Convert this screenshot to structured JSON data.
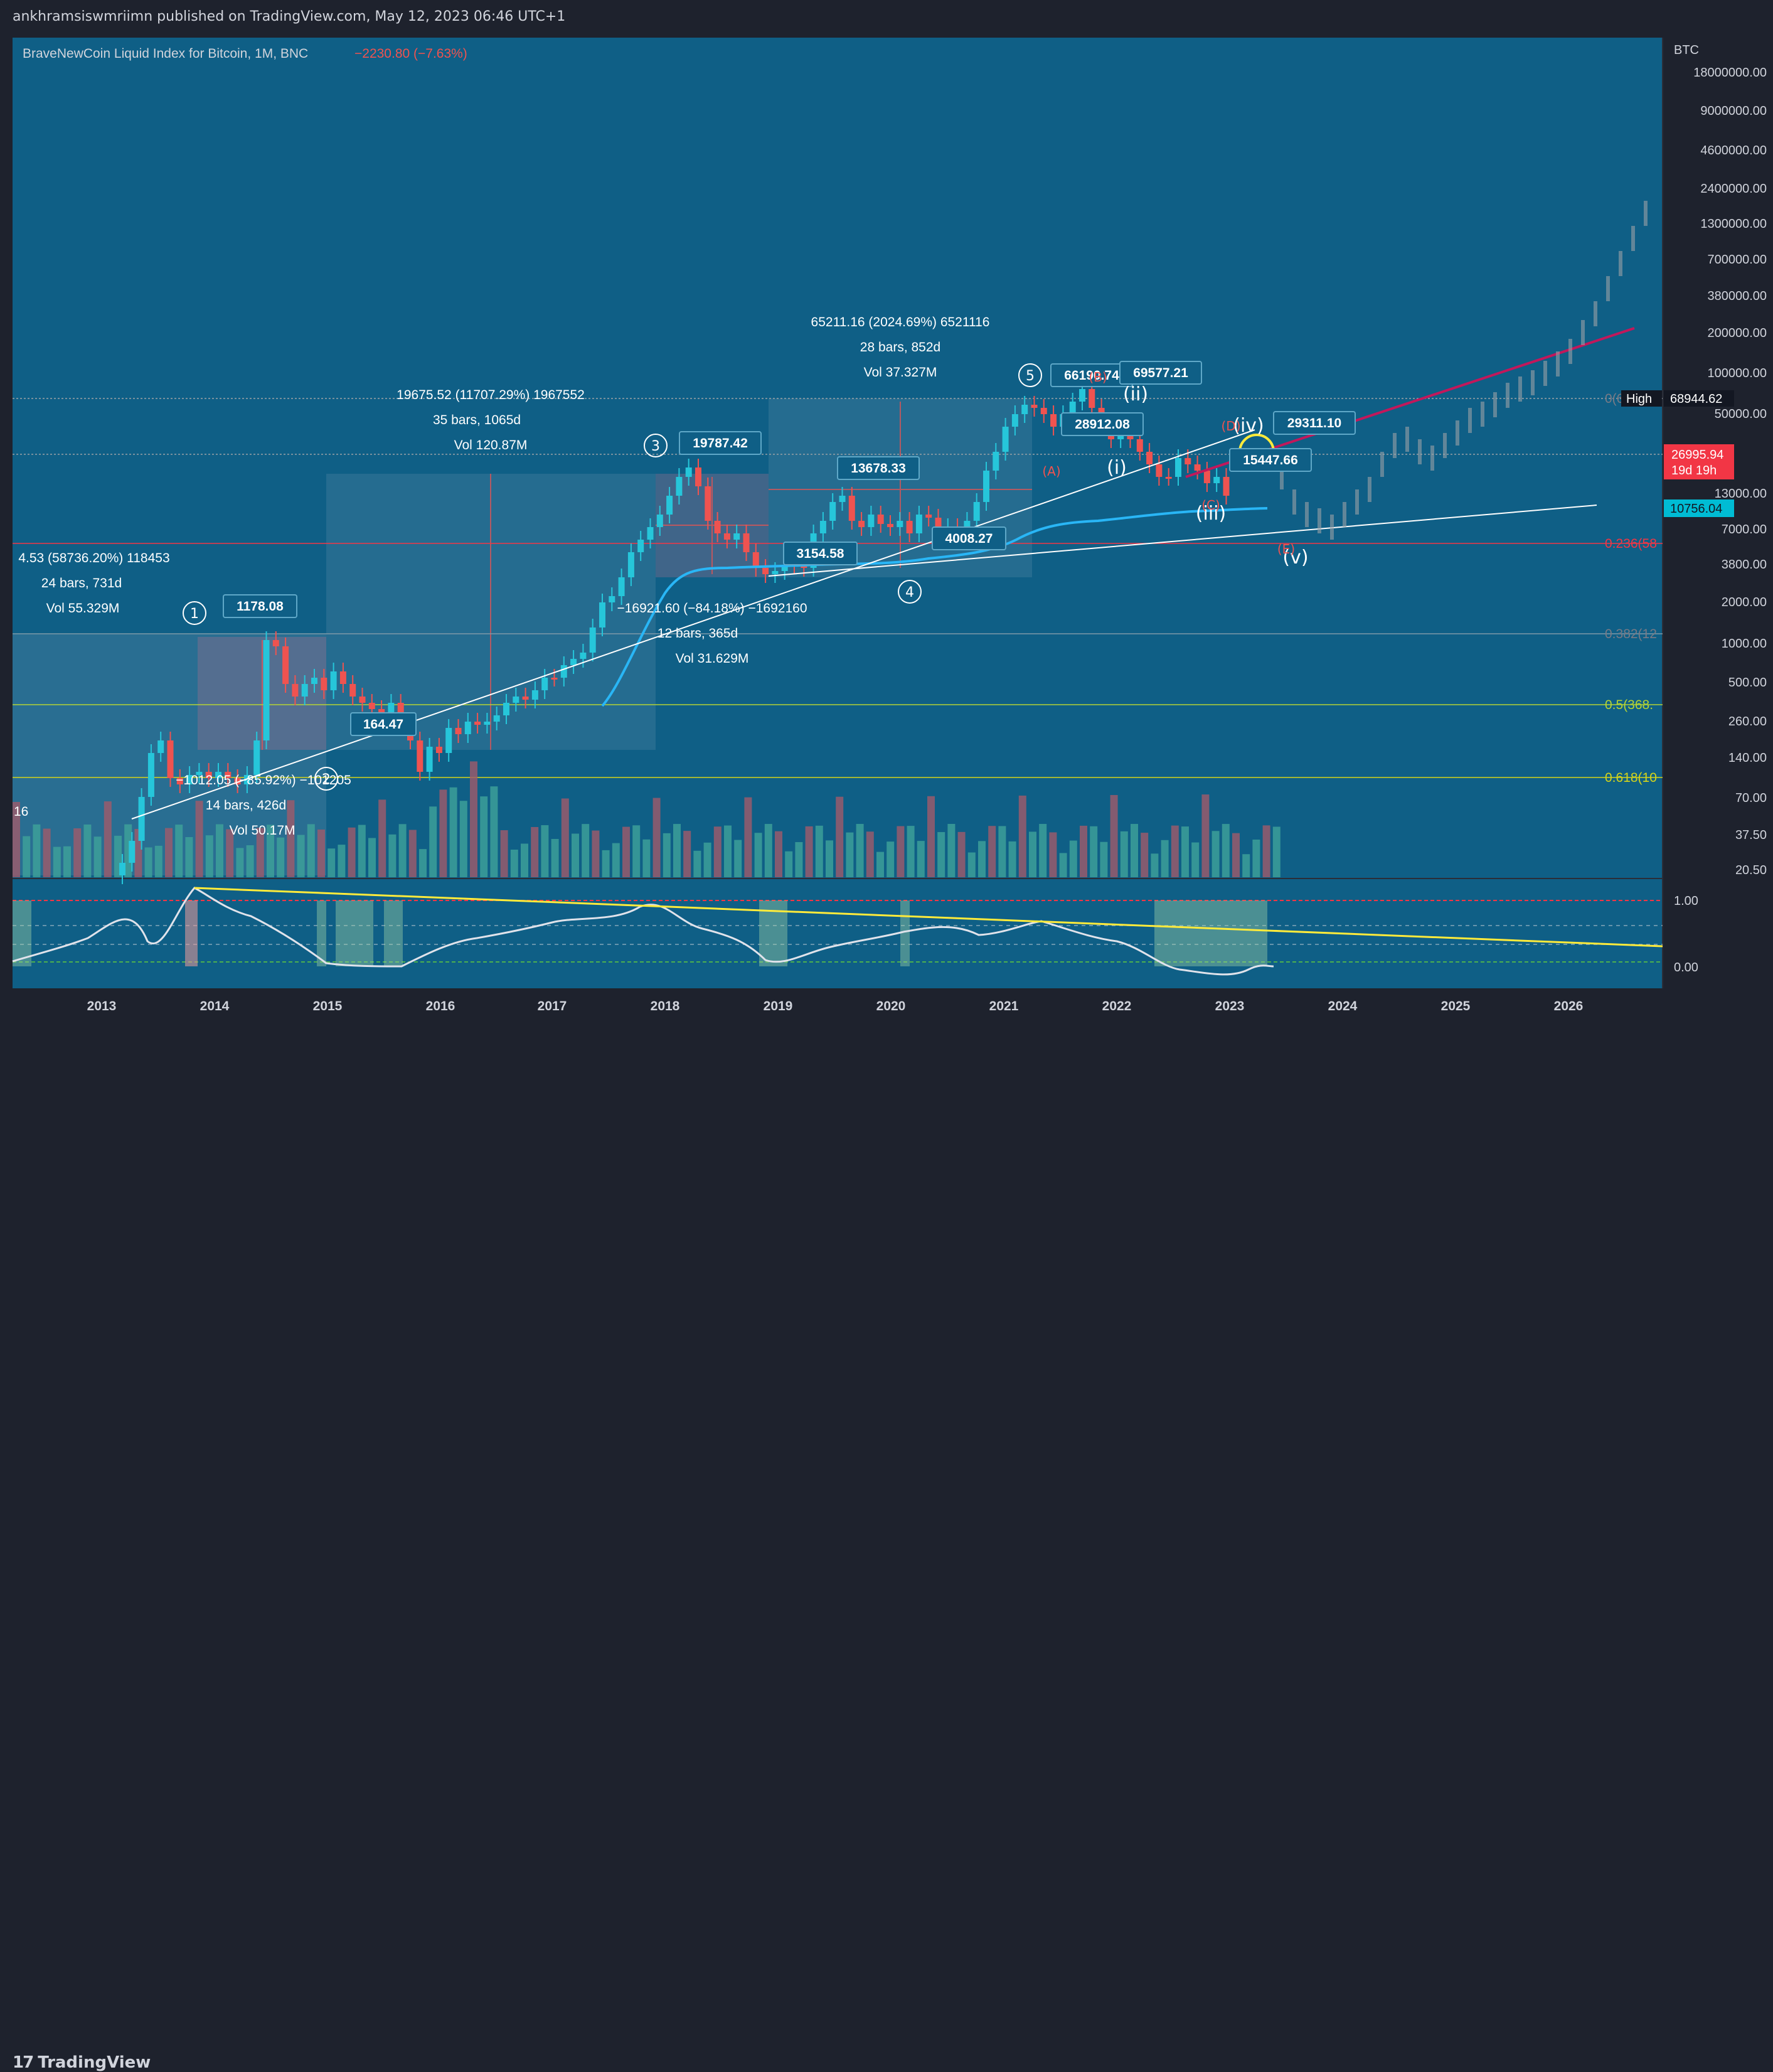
{
  "header": {
    "published_text": "ankhramsiswmriimn published on TradingView.com, May 12, 2023 06:46 UTC+1"
  },
  "legend": {
    "symbol_title": "BraveNewCoin Liquid Index for Bitcoin, 1M, BNC",
    "change_text": "−2230.80 (−7.63%)"
  },
  "price_axis": {
    "currency": "BTC",
    "labels": [
      "18000000.00",
      "9000000.00",
      "4600000.00",
      "2400000.00",
      "1300000.00",
      "700000.00",
      "380000.00",
      "200000.00",
      "100000.00",
      "50000.00",
      "13000.00",
      "7000.00",
      "3800.00",
      "2000.00",
      "1000.00",
      "500.00",
      "260.00",
      "140.00",
      "70.00",
      "37.50",
      "20.50"
    ],
    "high_tag": {
      "label": "High",
      "value": "68944.62"
    },
    "current_price": {
      "value": "26995.94",
      "countdown": "19d 19h"
    },
    "ma_value": "10756.04"
  },
  "fib_levels": [
    {
      "label": "0(6",
      "color": "#787b86"
    },
    {
      "label": "0.236(58",
      "color": "#f23645"
    },
    {
      "label": "0.382(12",
      "color": "#787b86"
    },
    {
      "label": "0.5(368.",
      "color": "#b5d334"
    },
    {
      "label": "0.618(10",
      "color": "#d4d41a"
    }
  ],
  "oscillator_axis": [
    "1.00",
    "0.00"
  ],
  "time_axis": [
    "2013",
    "2014",
    "2015",
    "2016",
    "2017",
    "2018",
    "2019",
    "2020",
    "2021",
    "2022",
    "2023",
    "2024",
    "2025",
    "2026"
  ],
  "wave_labels": {
    "primary": [
      "1",
      "2",
      "3",
      "4",
      "5"
    ],
    "minor": [
      "(i)",
      "(ii)",
      "(iii)",
      "(iv)",
      "(v)"
    ],
    "corrective": [
      "(A)",
      "(B)",
      "(C)",
      "(D)",
      "(E)"
    ]
  },
  "price_callouts": [
    "1178.08",
    "164.47",
    "19787.42",
    "3154.58",
    "13678.33",
    "4008.27",
    "66190.74",
    "69577.21",
    "28912.08",
    "15447.66",
    "29311.10"
  ],
  "range_annotations": [
    {
      "line1": "4.53 (58736.20%) 118453",
      "line2": "24 bars, 731d",
      "line3": "Vol 55.329M"
    },
    {
      "line1": "−1012.05 (−85.92%) −101205",
      "line2": "14 bars, 426d",
      "line3": "Vol 50.17M"
    },
    {
      "line1": "19675.52 (11707.29%) 1967552",
      "line2": "35 bars, 1065d",
      "line3": "Vol 120.87M"
    },
    {
      "line1": "−16921.60 (−84.18%) −1692160",
      "line2": "12 bars, 365d",
      "line3": "Vol 31.629M"
    },
    {
      "line1": "65211.16 (2024.69%) 6521116",
      "line2": "28 bars, 852d",
      "line3": "Vol 37.327M"
    }
  ],
  "left_edge_number": "16",
  "branding": {
    "logo_text": "TradingView"
  },
  "colors": {
    "chart_bg": "#0f5f86",
    "bull": "#26c6da",
    "bear": "#ef5350",
    "ma": "#29b6f6",
    "resistance": "#c2185b",
    "trend": "#ffeb3b"
  }
}
